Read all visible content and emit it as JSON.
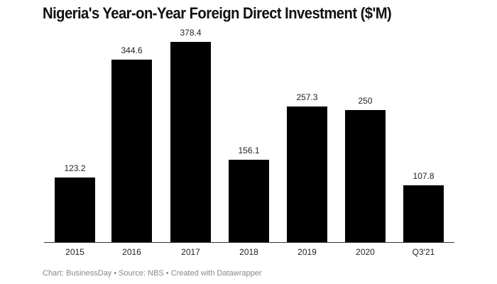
{
  "chart_data": {
    "type": "bar",
    "title": "Nigeria's Year-on-Year Foreign Direct Investment ($'M)",
    "categories": [
      "2015",
      "2016",
      "2017",
      "2018",
      "2019",
      "2020",
      "Q3'21"
    ],
    "values": [
      123.2,
      344.6,
      378.4,
      156.1,
      257.3,
      250,
      107.8
    ],
    "value_labels": [
      "123.2",
      "344.6",
      "378.4",
      "156.1",
      "257.3",
      "250",
      "107.8"
    ],
    "xlabel": "",
    "ylabel": "",
    "ylim": [
      0,
      400
    ],
    "grid": false,
    "legend": null,
    "bar_color": "#000000"
  },
  "footer": "Chart: BusinessDay • Source: NBS • Created with Datawrapper"
}
